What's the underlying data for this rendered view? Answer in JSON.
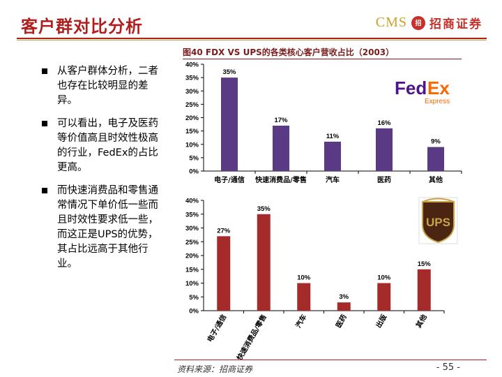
{
  "header": {
    "title": "客户群对比分析",
    "logo_text": "CMS",
    "logo_badge": "招",
    "logo_cn": "招商证券"
  },
  "bullets": [
    "从客户群体分析，二者也存在比较明显的差异。",
    "可以看出，电子及医药等价值高且时效性极高的行业，FedEx的占比更高。",
    "而快速消费品和零售通常情况下单价低一些而且时效性要求低一些，而这正是UPS的优势，其占比远高于其他行业。"
  ],
  "chart_title": "图40 FDX VS UPS的各类核心客户营收占比（2003）",
  "chart_data": [
    {
      "type": "bar",
      "name": "FedEx",
      "categories": [
        "电子/通信",
        "快速消费品/零售",
        "汽车",
        "医药",
        "其他"
      ],
      "values": [
        35,
        17,
        11,
        16,
        9
      ],
      "value_labels": [
        "35%",
        "17%",
        "11%",
        "16%",
        "9%"
      ],
      "ylim": [
        0,
        40
      ],
      "yticks": [
        "0%",
        "5%",
        "10%",
        "15%",
        "20%",
        "25%",
        "30%",
        "35%",
        "40%"
      ],
      "color": "#5b3a85"
    },
    {
      "type": "bar",
      "name": "UPS",
      "categories": [
        "电子/通信",
        "快速消费品/零售",
        "汽车",
        "医药",
        "出版",
        "其他"
      ],
      "values": [
        27,
        35,
        10,
        3,
        10,
        15
      ],
      "value_labels": [
        "27%",
        "35%",
        "10%",
        "3%",
        "10%",
        "15%"
      ],
      "ylim": [
        0,
        40
      ],
      "yticks": [
        "0%",
        "5%",
        "10%",
        "15%",
        "20%",
        "25%",
        "30%",
        "35%",
        "40%"
      ],
      "color": "#a52a2a"
    }
  ],
  "fedex_logo": {
    "fed": "Fed",
    "ex": "Ex",
    "sub": "Express"
  },
  "ups_logo": {
    "text": "UPS"
  },
  "footer": {
    "source": "资料来源：招商证券",
    "page": "- 55 -"
  }
}
